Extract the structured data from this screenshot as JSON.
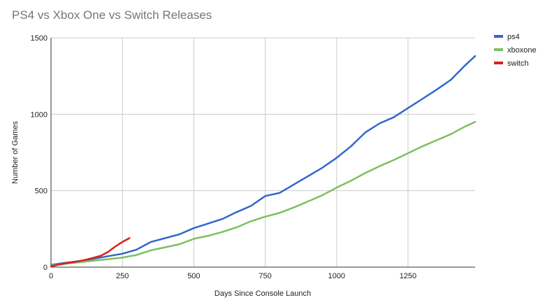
{
  "chart_data": {
    "type": "line",
    "title": "PS4 vs Xbox One vs Switch Releases",
    "xlabel": "Days Since Console Launch",
    "ylabel": "Number of Games",
    "xlim": [
      0,
      1485
    ],
    "ylim": [
      0,
      1500
    ],
    "x_ticks": [
      0,
      250,
      500,
      750,
      1000,
      1250
    ],
    "x_tick_labels": [
      "0",
      "250",
      "500",
      "750",
      "1000",
      "1250"
    ],
    "y_ticks": [
      0,
      500,
      1000,
      1500
    ],
    "y_tick_labels": [
      "0",
      "500",
      "1000",
      "1500"
    ],
    "grid": true,
    "legend_position": "right",
    "series": [
      {
        "name": "ps4",
        "color": "#3366cc",
        "x": [
          0,
          50,
          100,
          150,
          200,
          250,
          300,
          350,
          400,
          450,
          500,
          550,
          600,
          650,
          700,
          750,
          800,
          850,
          900,
          950,
          1000,
          1050,
          1100,
          1150,
          1200,
          1250,
          1300,
          1350,
          1400,
          1450,
          1485
        ],
        "y": [
          15,
          28,
          40,
          55,
          72,
          88,
          115,
          165,
          190,
          215,
          255,
          285,
          315,
          360,
          400,
          465,
          485,
          540,
          595,
          650,
          715,
          790,
          880,
          940,
          980,
          1040,
          1100,
          1160,
          1225,
          1320,
          1380
        ]
      },
      {
        "name": "xboxone",
        "color": "#7fbf5f",
        "x": [
          0,
          50,
          100,
          150,
          200,
          250,
          300,
          350,
          400,
          450,
          500,
          550,
          600,
          650,
          700,
          750,
          800,
          850,
          900,
          950,
          1000,
          1050,
          1100,
          1150,
          1200,
          1250,
          1300,
          1350,
          1400,
          1450,
          1485
        ],
        "y": [
          10,
          22,
          32,
          42,
          52,
          62,
          80,
          110,
          130,
          150,
          185,
          205,
          230,
          260,
          300,
          330,
          355,
          390,
          430,
          470,
          520,
          565,
          615,
          660,
          700,
          745,
          790,
          830,
          870,
          920,
          950
        ]
      },
      {
        "name": "switch",
        "color": "#dc1f1f",
        "x": [
          0,
          25,
          50,
          75,
          100,
          125,
          150,
          175,
          200,
          225,
          250,
          275
        ],
        "y": [
          5,
          15,
          25,
          32,
          40,
          50,
          62,
          75,
          100,
          135,
          165,
          190
        ]
      }
    ]
  }
}
